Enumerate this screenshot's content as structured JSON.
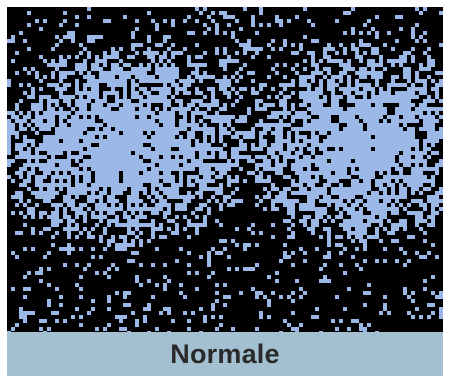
{
  "label": "Normale",
  "colors": {
    "background": "#000000",
    "pixel": "#9bb8e6",
    "label_bar": "#a3c0d0",
    "label_text": "#2a2a2a"
  }
}
